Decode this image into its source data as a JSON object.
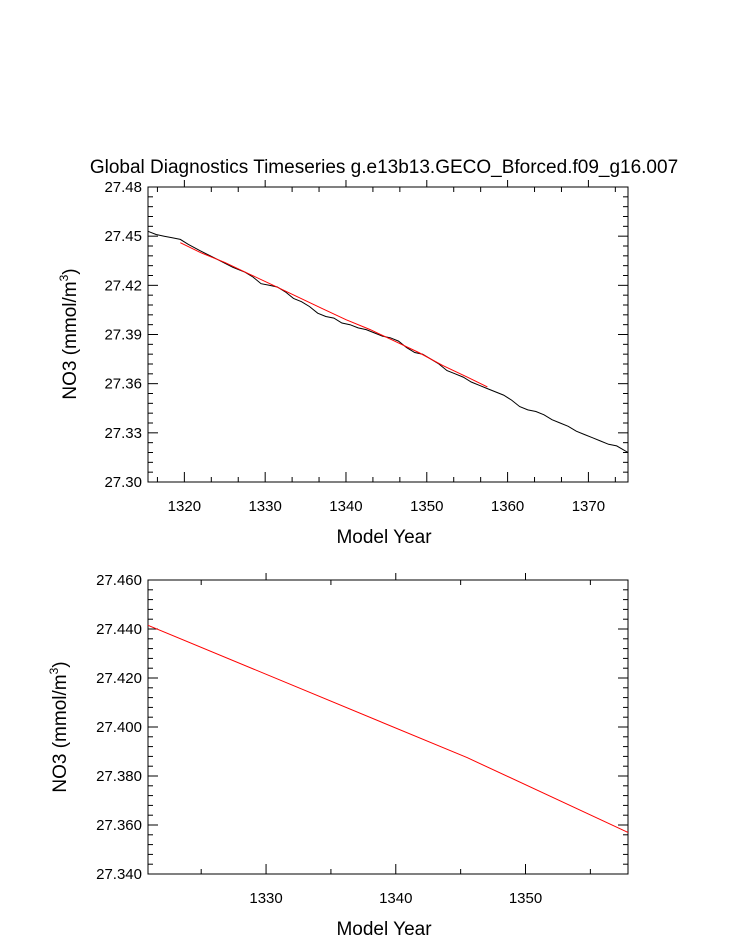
{
  "chart_data": [
    {
      "type": "line",
      "title": "Global Diagnostics Timeseries g.e13b13.GECO_Bforced.f09_g16.007",
      "xlabel": "Model Year",
      "ylabel": "NO3 (mmol/m",
      "ylabel_superscript": "3",
      "ylabel_suffix": ")",
      "xlim": [
        1315.5,
        1374.9
      ],
      "ylim": [
        27.3,
        27.48
      ],
      "xticks": [
        1320,
        1330,
        1340,
        1350,
        1360,
        1370
      ],
      "xtick_labels": [
        "1320",
        "1330",
        "1340",
        "1350",
        "1360",
        "1370"
      ],
      "yticks": [
        27.3,
        27.33,
        27.36,
        27.39,
        27.42,
        27.45,
        27.48
      ],
      "ytick_labels": [
        "27.30",
        "27.33",
        "27.36",
        "27.39",
        "27.42",
        "27.45",
        "27.48"
      ],
      "grid": false,
      "series": [
        {
          "color": "#000000",
          "x": [
            1315.5,
            1316.5,
            1317.5,
            1318.5,
            1319.5,
            1320.5,
            1322,
            1324,
            1326,
            1327.5,
            1328.5,
            1329.5,
            1330.5,
            1331.5,
            1332.5,
            1333.5,
            1334.5,
            1335.5,
            1336.5,
            1337.5,
            1338.5,
            1339.5,
            1340.5,
            1341.5,
            1342.5,
            1343.5,
            1344.5,
            1345.5,
            1346.5,
            1347.5,
            1348.5,
            1349.5,
            1350.5,
            1351.5,
            1352.5,
            1353.5,
            1354.5,
            1355.5,
            1356.5,
            1357.5,
            1358.5,
            1359.5,
            1360.5,
            1361.5,
            1362.5,
            1363.5,
            1364.5,
            1365.5,
            1366.5,
            1367.5,
            1368.5,
            1369.5,
            1370.5,
            1371.5,
            1372.5,
            1373.5,
            1374.9
          ],
          "y": [
            27.453,
            27.451,
            27.45,
            27.449,
            27.448,
            27.445,
            27.441,
            27.436,
            27.431,
            27.428,
            27.425,
            27.421,
            27.42,
            27.419,
            27.416,
            27.412,
            27.41,
            27.407,
            27.403,
            27.401,
            27.4,
            27.397,
            27.396,
            27.394,
            27.393,
            27.391,
            27.389,
            27.388,
            27.386,
            27.382,
            27.379,
            27.378,
            27.375,
            27.372,
            27.368,
            27.366,
            27.364,
            27.361,
            27.359,
            27.357,
            27.355,
            27.353,
            27.35,
            27.346,
            27.344,
            27.343,
            27.341,
            27.338,
            27.336,
            27.334,
            27.331,
            27.329,
            27.327,
            27.325,
            27.323,
            27.322,
            27.318
          ]
        },
        {
          "color": "#ff0000",
          "x": [
            1319.5,
            1322,
            1325,
            1328,
            1331,
            1334,
            1337,
            1340,
            1343,
            1346,
            1349,
            1352,
            1355,
            1357.5
          ],
          "y": [
            27.446,
            27.44,
            27.434,
            27.427,
            27.42,
            27.413,
            27.406,
            27.399,
            27.393,
            27.386,
            27.379,
            27.371,
            27.364,
            27.358
          ]
        }
      ]
    },
    {
      "type": "line",
      "xlabel": "Model Year",
      "ylabel": "NO3 (mmol/m",
      "ylabel_superscript": "3",
      "ylabel_suffix": ")",
      "xlim": [
        1320.9,
        1357.9
      ],
      "ylim": [
        27.34,
        27.46
      ],
      "xticks": [
        1330,
        1340,
        1350
      ],
      "xtick_labels": [
        "1330",
        "1340",
        "1350"
      ],
      "yticks": [
        27.34,
        27.36,
        27.38,
        27.4,
        27.42,
        27.44,
        27.46
      ],
      "ytick_labels": [
        "27.340",
        "27.360",
        "27.380",
        "27.400",
        "27.420",
        "27.440",
        "27.460"
      ],
      "grid": false,
      "series": [
        {
          "color": "#ff0000",
          "x": [
            1320.9,
            1345.5,
            1357.9
          ],
          "y": [
            27.4415,
            27.3875,
            27.357
          ]
        }
      ]
    }
  ]
}
